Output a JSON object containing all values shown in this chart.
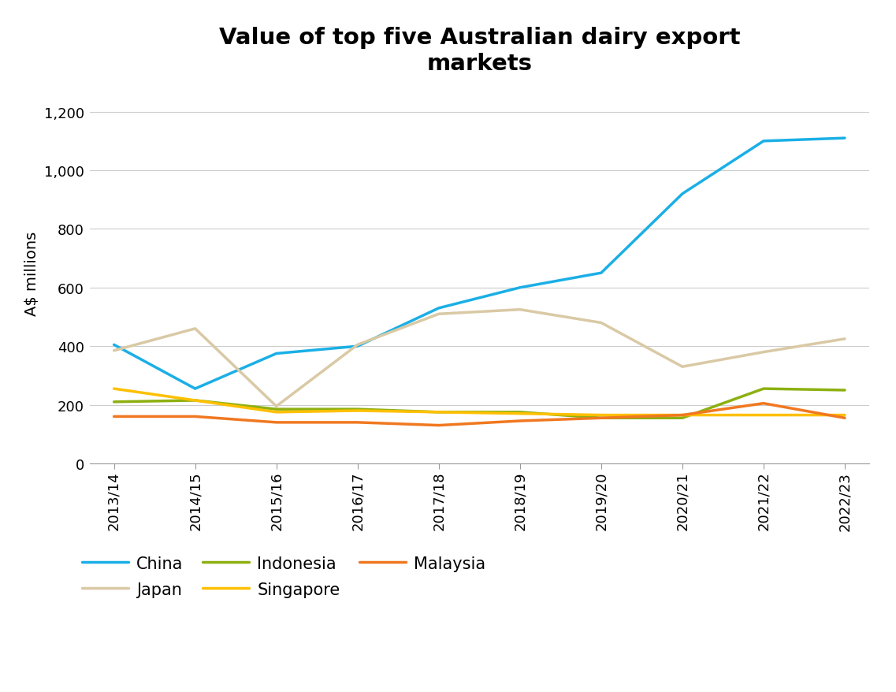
{
  "title": "Value of top five Australian dairy export\nmarkets",
  "ylabel": "A$ millions",
  "years": [
    "2013/14",
    "2014/15",
    "2015/16",
    "2016/17",
    "2017/18",
    "2018/19",
    "2019/20",
    "2020/21",
    "2021/22",
    "2022/23"
  ],
  "series": {
    "China": {
      "values": [
        405,
        255,
        375,
        400,
        530,
        600,
        650,
        920,
        1100,
        1110
      ],
      "color": "#1AAFE6",
      "linewidth": 2.5
    },
    "Japan": {
      "values": [
        385,
        460,
        195,
        405,
        510,
        525,
        480,
        330,
        380,
        425
      ],
      "color": "#D9C9A5",
      "linewidth": 2.5
    },
    "Indonesia": {
      "values": [
        210,
        215,
        185,
        185,
        175,
        175,
        155,
        155,
        255,
        250
      ],
      "color": "#8DB011",
      "linewidth": 2.5
    },
    "Singapore": {
      "values": [
        255,
        215,
        175,
        180,
        175,
        170,
        165,
        165,
        165,
        165
      ],
      "color": "#FFC000",
      "linewidth": 2.5
    },
    "Malaysia": {
      "values": [
        160,
        160,
        140,
        140,
        130,
        145,
        155,
        165,
        205,
        155
      ],
      "color": "#F07820",
      "linewidth": 2.5
    }
  },
  "ylim": [
    0,
    1300
  ],
  "yticks": [
    0,
    200,
    400,
    600,
    800,
    1000,
    1200
  ],
  "ytick_labels": [
    "0",
    "200",
    "400",
    "600",
    "800",
    "1,000",
    "1,200"
  ],
  "legend_order": [
    "China",
    "Japan",
    "Indonesia",
    "Singapore",
    "Malaysia"
  ],
  "background_color": "#FFFFFF",
  "title_fontsize": 21,
  "axis_label_fontsize": 14,
  "tick_fontsize": 13,
  "legend_fontsize": 15
}
